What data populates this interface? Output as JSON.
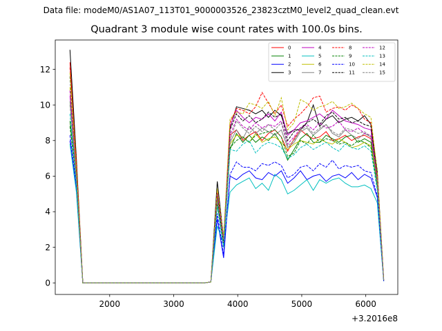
{
  "figure": {
    "suptitle": "Data file: modeM0/AS1A07_113T01_9000003526_23823cztM0_level2_quad_clean.evt",
    "offset_text": "+3.2016e8"
  },
  "chart_data": {
    "type": "line",
    "title": "Quadrant 3 module wise count rates with 100.0s bins.",
    "xlabel": "",
    "ylabel": "",
    "x_offset": 320160000,
    "xlim": [
      1150,
      6500
    ],
    "ylim": [
      -0.65,
      13.65
    ],
    "xticks": [
      2000,
      3000,
      4000,
      5000,
      6000
    ],
    "yticks": [
      0,
      2,
      4,
      6,
      8,
      10,
      12
    ],
    "grid": false,
    "legend": {
      "position": "top-right",
      "columns": 4
    },
    "x": [
      1380,
      1480,
      1580,
      1680,
      1780,
      1880,
      1980,
      2080,
      2180,
      2280,
      2380,
      2480,
      2580,
      2680,
      2780,
      2880,
      2980,
      3080,
      3180,
      3280,
      3380,
      3480,
      3580,
      3680,
      3780,
      3880,
      3980,
      4080,
      4180,
      4280,
      4380,
      4480,
      4580,
      4680,
      4780,
      4880,
      4980,
      5080,
      5180,
      5280,
      5380,
      5480,
      5580,
      5680,
      5780,
      5880,
      5980,
      6080,
      6180,
      6280
    ],
    "series": [
      {
        "name": "0",
        "color": "#ff0000",
        "dash": false,
        "values": [
          12.4,
          6.6,
          0,
          0,
          0,
          0,
          0,
          0,
          0,
          0,
          0,
          0,
          0,
          0,
          0,
          0,
          0,
          0,
          0,
          0,
          0,
          0,
          0.05,
          4.8,
          2.2,
          8.3,
          8.6,
          8.0,
          8.3,
          8.5,
          8.0,
          8.4,
          8.6,
          8.2,
          7.4,
          8.1,
          8.6,
          8.3,
          8.1,
          8.2,
          8.5,
          8.0,
          8.1,
          8.3,
          8.0,
          8.2,
          8.3,
          8.1,
          5.8,
          0.2
        ]
      },
      {
        "name": "1",
        "color": "#008000",
        "dash": false,
        "values": [
          9.1,
          5.9,
          0,
          0,
          0,
          0,
          0,
          0,
          0,
          0,
          0,
          0,
          0,
          0,
          0,
          0,
          0,
          0,
          0,
          0,
          0,
          0,
          0.05,
          4.6,
          2.0,
          7.5,
          8.4,
          7.9,
          8.3,
          7.9,
          8.2,
          8.0,
          8.4,
          7.8,
          6.9,
          7.5,
          8.1,
          8.4,
          7.9,
          7.9,
          8.3,
          8.1,
          7.9,
          8.2,
          8.3,
          7.9,
          8.1,
          7.9,
          5.4,
          0.15
        ]
      },
      {
        "name": "2",
        "color": "#0000ff",
        "dash": false,
        "values": [
          8.0,
          5.3,
          0,
          0,
          0,
          0,
          0,
          0,
          0,
          0,
          0,
          0,
          0,
          0,
          0,
          0,
          0,
          0,
          0,
          0,
          0,
          0,
          0.05,
          3.6,
          1.4,
          6.0,
          5.8,
          6.1,
          6.3,
          5.9,
          5.8,
          6.2,
          6.0,
          6.3,
          5.6,
          5.9,
          6.3,
          5.8,
          6.0,
          6.1,
          5.7,
          6.0,
          6.1,
          5.9,
          6.2,
          5.8,
          6.1,
          5.9,
          4.8,
          0.1
        ]
      },
      {
        "name": "3",
        "color": "#000000",
        "dash": false,
        "values": [
          13.1,
          7.0,
          0,
          0,
          0,
          0,
          0,
          0,
          0,
          0,
          0,
          0,
          0,
          0,
          0,
          0,
          0,
          0,
          0,
          0,
          0,
          0,
          0.05,
          5.7,
          2.5,
          8.7,
          9.9,
          9.8,
          9.7,
          9.5,
          9.7,
          9.3,
          9.7,
          9.4,
          8.4,
          8.6,
          8.6,
          9.0,
          10.0,
          8.8,
          9.2,
          9.4,
          9.0,
          9.2,
          9.3,
          9.1,
          9.4,
          8.9,
          6.3,
          0.15
        ]
      },
      {
        "name": "4",
        "color": "#bf00bf",
        "dash": false,
        "values": [
          10.5,
          6.3,
          0,
          0,
          0,
          0,
          0,
          0,
          0,
          0,
          0,
          0,
          0,
          0,
          0,
          0,
          0,
          0,
          0,
          0,
          0,
          0,
          0.05,
          5.0,
          2.4,
          8.8,
          9.7,
          9.3,
          9.0,
          9.3,
          9.2,
          9.5,
          9.1,
          9.6,
          8.3,
          8.6,
          9.0,
          9.1,
          9.3,
          9.5,
          9.2,
          9.7,
          9.4,
          9.1,
          9.0,
          8.9,
          8.7,
          8.6,
          6.0,
          0.15
        ]
      },
      {
        "name": "5",
        "color": "#00bfbf",
        "dash": false,
        "values": [
          7.8,
          5.1,
          0,
          0,
          0,
          0,
          0,
          0,
          0,
          0,
          0,
          0,
          0,
          0,
          0,
          0,
          0,
          0,
          0,
          0,
          0,
          0,
          0.05,
          3.2,
          2.2,
          5.1,
          5.5,
          5.7,
          5.9,
          5.3,
          5.6,
          5.2,
          6.1,
          5.8,
          5.0,
          5.2,
          5.5,
          5.8,
          5.2,
          5.8,
          5.6,
          5.8,
          5.9,
          5.6,
          5.4,
          5.4,
          5.5,
          5.3,
          4.5,
          0.1
        ]
      },
      {
        "name": "6",
        "color": "#bfbf00",
        "dash": false,
        "values": [
          11.0,
          6.2,
          0,
          0,
          0,
          0,
          0,
          0,
          0,
          0,
          0,
          0,
          0,
          0,
          0,
          0,
          0,
          0,
          0,
          0,
          0,
          0,
          0.05,
          4.9,
          2.3,
          7.8,
          8.3,
          8.2,
          7.9,
          8.4,
          7.9,
          8.1,
          8.2,
          7.9,
          7.5,
          7.8,
          8.0,
          7.9,
          7.8,
          8.1,
          7.9,
          7.8,
          8.1,
          7.9,
          7.6,
          7.7,
          7.9,
          7.7,
          5.7,
          0.15
        ]
      },
      {
        "name": "7",
        "color": "#808080",
        "dash": false,
        "values": [
          10.2,
          5.8,
          0,
          0,
          0,
          0,
          0,
          0,
          0,
          0,
          0,
          0,
          0,
          0,
          0,
          0,
          0,
          0,
          0,
          0,
          0,
          0,
          0.05,
          4.5,
          2.1,
          7.9,
          8.6,
          8.1,
          8.8,
          8.4,
          8.7,
          8.5,
          8.3,
          8.6,
          7.6,
          7.9,
          8.5,
          8.7,
          8.3,
          8.6,
          8.9,
          8.4,
          8.2,
          8.6,
          8.3,
          8.1,
          8.4,
          8.2,
          5.9,
          0.15
        ]
      },
      {
        "name": "8",
        "color": "#ff0000",
        "dash": true,
        "values": [
          12.1,
          6.8,
          0,
          0,
          0,
          0,
          0,
          0,
          0,
          0,
          0,
          0,
          0,
          0,
          0,
          0,
          0,
          0,
          0,
          0,
          0,
          0,
          0.05,
          5.2,
          2.4,
          9.0,
          9.8,
          9.7,
          9.5,
          9.9,
          10.7,
          10.1,
          9.5,
          10.0,
          8.8,
          9.2,
          9.5,
          9.9,
          10.4,
          10.5,
          9.6,
          9.8,
          9.9,
          9.7,
          10.0,
          9.8,
          9.2,
          9.0,
          6.1,
          0.2
        ]
      },
      {
        "name": "9",
        "color": "#008000",
        "dash": true,
        "values": [
          8.8,
          5.7,
          0,
          0,
          0,
          0,
          0,
          0,
          0,
          0,
          0,
          0,
          0,
          0,
          0,
          0,
          0,
          0,
          0,
          0,
          0,
          0,
          0.05,
          4.4,
          2.3,
          7.6,
          8.0,
          8.2,
          7.9,
          8.3,
          8.4,
          8.5,
          8.6,
          8.2,
          7.1,
          7.3,
          8.0,
          7.8,
          8.3,
          7.9,
          8.1,
          8.0,
          7.8,
          7.9,
          7.7,
          8.0,
          7.9,
          7.6,
          5.5,
          0.15
        ]
      },
      {
        "name": "10",
        "color": "#0000ff",
        "dash": true,
        "values": [
          8.3,
          5.5,
          0,
          0,
          0,
          0,
          0,
          0,
          0,
          0,
          0,
          0,
          0,
          0,
          0,
          0,
          0,
          0,
          0,
          0,
          0,
          0,
          0.05,
          3.9,
          1.6,
          6.1,
          6.8,
          6.5,
          6.5,
          6.3,
          6.7,
          6.6,
          6.8,
          6.6,
          5.9,
          6.1,
          6.5,
          6.6,
          6.3,
          6.7,
          6.5,
          6.9,
          6.4,
          6.6,
          6.5,
          6.6,
          6.3,
          6.2,
          4.9,
          0.1
        ]
      },
      {
        "name": "11",
        "color": "#000000",
        "dash": true,
        "values": [
          11.6,
          6.4,
          0,
          0,
          0,
          0,
          0,
          0,
          0,
          0,
          0,
          0,
          0,
          0,
          0,
          0,
          0,
          0,
          0,
          0,
          0,
          0,
          0.05,
          5.0,
          2.2,
          8.6,
          9.5,
          9.1,
          9.4,
          9.0,
          9.2,
          9.6,
          9.3,
          9.5,
          8.0,
          8.5,
          8.7,
          9.0,
          9.2,
          8.9,
          9.4,
          9.6,
          9.2,
          9.3,
          9.0,
          9.1,
          8.9,
          8.8,
          6.0,
          0.15
        ]
      },
      {
        "name": "12",
        "color": "#bf00bf",
        "dash": true,
        "values": [
          10.8,
          6.1,
          0,
          0,
          0,
          0,
          0,
          0,
          0,
          0,
          0,
          0,
          0,
          0,
          0,
          0,
          0,
          0,
          0,
          0,
          0,
          0,
          0.05,
          5.1,
          2.5,
          8.3,
          9.2,
          8.8,
          8.6,
          9.0,
          8.7,
          8.9,
          8.8,
          9.1,
          7.8,
          8.2,
          8.7,
          8.9,
          8.6,
          9.0,
          8.7,
          8.8,
          9.1,
          8.6,
          8.5,
          8.7,
          8.4,
          8.3,
          5.8,
          0.15
        ]
      },
      {
        "name": "13",
        "color": "#00bfbf",
        "dash": true,
        "values": [
          9.5,
          5.6,
          0,
          0,
          0,
          0,
          0,
          0,
          0,
          0,
          0,
          0,
          0,
          0,
          0,
          0,
          0,
          0,
          0,
          0,
          0,
          0,
          0.05,
          4.3,
          2.0,
          7.5,
          7.4,
          7.8,
          8.0,
          7.3,
          7.7,
          7.9,
          7.8,
          7.6,
          7.0,
          7.2,
          7.6,
          7.8,
          7.5,
          7.7,
          7.9,
          7.6,
          7.4,
          7.8,
          7.6,
          7.5,
          7.7,
          7.4,
          5.2,
          0.1
        ]
      },
      {
        "name": "14",
        "color": "#bfbf00",
        "dash": true,
        "values": [
          11.8,
          6.5,
          0,
          0,
          0,
          0,
          0,
          0,
          0,
          0,
          0,
          0,
          0,
          0,
          0,
          0,
          0,
          0,
          0,
          0,
          0,
          0,
          0.05,
          5.3,
          2.6,
          9.2,
          9.6,
          9.5,
          10.1,
          10.0,
          9.8,
          10.2,
          9.4,
          10.4,
          8.6,
          9.0,
          10.3,
          10.1,
          9.7,
          9.9,
          10.0,
          10.2,
          9.8,
          9.9,
          10.1,
          9.8,
          9.5,
          9.3,
          6.2,
          0.2
        ]
      },
      {
        "name": "15",
        "color": "#808080",
        "dash": true,
        "values": [
          10.0,
          5.9,
          0,
          0,
          0,
          0,
          0,
          0,
          0,
          0,
          0,
          0,
          0,
          0,
          0,
          0,
          0,
          0,
          0,
          0,
          0,
          0,
          0.05,
          4.7,
          2.3,
          8.0,
          9.1,
          8.7,
          8.4,
          8.8,
          8.5,
          8.9,
          8.6,
          9.0,
          7.7,
          8.0,
          8.6,
          8.8,
          8.4,
          8.7,
          8.9,
          8.5,
          8.3,
          8.7,
          8.6,
          8.4,
          8.5,
          8.2,
          5.6,
          0.15
        ]
      }
    ]
  }
}
